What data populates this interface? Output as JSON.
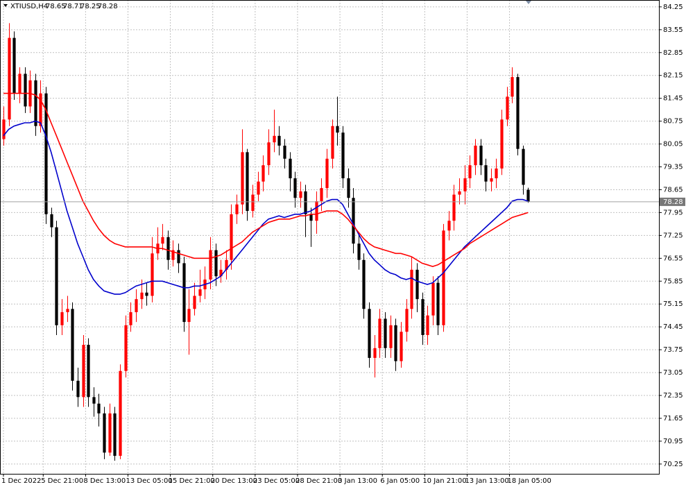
{
  "header": {
    "symbol": "XTIUSD,H4"
  },
  "chart_data": {
    "type": "candlestick",
    "up_color": "#ff0000",
    "down_color": "#000000",
    "grid": true,
    "xlim": [
      -0.65,
      123.7
    ],
    "ylim": [
      69.95,
      84.46
    ],
    "yticks": [
      84.25,
      83.55,
      82.85,
      82.15,
      81.45,
      80.75,
      80.05,
      79.35,
      78.65,
      77.95,
      77.25,
      76.55,
      75.85,
      75.15,
      74.45,
      73.75,
      73.05,
      72.35,
      71.65,
      70.95,
      70.25
    ],
    "xticks": [
      {
        "value": 0,
        "label": "1 Dec 2022"
      },
      {
        "value": 7.5,
        "label": "5 Dec 21:00"
      },
      {
        "value": 15.5,
        "label": "8 Dec 13:00"
      },
      {
        "value": 23.5,
        "label": "13 Dec 05:00"
      },
      {
        "value": 31.5,
        "label": "15 Dec 21:00"
      },
      {
        "value": 39.5,
        "label": "20 Dec 13:00"
      },
      {
        "value": 47.5,
        "label": "23 Dec 05:00"
      },
      {
        "value": 55.5,
        "label": "28 Dec 21:00"
      },
      {
        "value": 63.5,
        "label": "3 Jan 13:00"
      },
      {
        "value": 71.5,
        "label": "6 Jan 05:00"
      },
      {
        "value": 79.5,
        "label": "10 Jan 21:00"
      },
      {
        "value": 87.5,
        "label": "13 Jan 13:00"
      },
      {
        "value": 95.5,
        "label": "18 Jan 05:00"
      }
    ],
    "open": [
      80.2,
      80.8,
      83.3,
      81.6,
      82.2,
      81.2,
      82.0,
      80.6,
      81.6,
      77.9,
      77.5,
      74.5,
      74.9,
      75.0,
      72.8,
      72.3,
      73.9,
      72.3,
      72.1,
      71.8,
      70.6,
      71.8,
      70.5,
      73.1,
      74.5,
      74.9,
      75.3,
      75.5,
      75.4,
      76.7,
      77.0,
      77.2,
      76.5,
      76.8,
      76.4,
      74.6,
      75.0,
      75.4,
      75.6,
      75.9,
      76.8,
      76.0,
      76.2,
      76.5,
      77.9,
      78.2,
      79.8,
      78.0,
      78.5,
      78.9,
      79.4,
      80.1,
      80.3,
      80.0,
      79.6,
      79.0,
      78.4,
      78.6,
      77.9,
      77.7,
      78.3,
      78.7,
      79.6,
      80.6,
      80.4,
      79.0,
      78.4,
      77.0,
      76.5,
      75.0,
      73.5,
      73.8,
      74.7,
      73.8,
      74.5,
      73.4,
      74.3,
      75.0,
      76.2,
      75.3,
      74.2,
      74.8,
      75.8,
      74.5,
      77.4,
      77.7,
      78.5,
      78.6,
      79.0,
      79.4,
      80.0,
      79.4,
      78.9,
      79.0,
      79.3,
      80.8,
      81.5,
      82.1,
      79.9,
      78.65
    ],
    "high": [
      81.2,
      83.75,
      83.5,
      82.4,
      82.4,
      82.3,
      82.2,
      82.0,
      81.8,
      78.1,
      77.7,
      75.3,
      75.4,
      75.2,
      73.2,
      74.2,
      74.1,
      72.6,
      72.4,
      72.0,
      72.1,
      72.0,
      73.3,
      74.8,
      75.2,
      75.6,
      75.9,
      75.8,
      77.2,
      77.5,
      77.6,
      77.4,
      77.1,
      77.0,
      76.6,
      75.6,
      75.8,
      76.2,
      76.3,
      77.2,
      77.0,
      76.5,
      76.8,
      78.2,
      78.5,
      80.5,
      79.9,
      78.8,
      79.2,
      79.7,
      80.5,
      81.1,
      80.6,
      80.2,
      79.8,
      79.2,
      78.9,
      78.8,
      78.1,
      78.6,
      79.0,
      79.9,
      80.8,
      81.5,
      80.6,
      79.3,
      78.7,
      77.3,
      76.7,
      75.2,
      74.2,
      75.0,
      74.9,
      74.8,
      74.7,
      74.6,
      75.3,
      76.6,
      76.4,
      75.5,
      75.1,
      76.0,
      76.0,
      77.6,
      78.0,
      78.8,
      79.0,
      79.4,
      79.7,
      80.2,
      80.2,
      79.6,
      79.3,
      79.6,
      81.1,
      81.8,
      82.4,
      82.2,
      80.0,
      78.71
    ],
    "low": [
      80.0,
      80.6,
      81.4,
      81.3,
      81.0,
      81.0,
      80.3,
      80.4,
      77.6,
      77.2,
      74.2,
      74.2,
      74.6,
      72.5,
      72.0,
      72.0,
      72.0,
      71.7,
      71.4,
      70.4,
      70.5,
      70.35,
      70.4,
      72.9,
      74.3,
      74.6,
      75.0,
      75.1,
      75.2,
      76.5,
      76.8,
      76.2,
      76.3,
      76.1,
      74.3,
      73.6,
      74.8,
      75.2,
      75.3,
      75.6,
      75.7,
      75.8,
      75.9,
      76.2,
      77.6,
      77.9,
      77.7,
      77.8,
      78.3,
      78.6,
      79.1,
      79.8,
      79.7,
      79.3,
      78.6,
      78.1,
      78.1,
      77.2,
      76.9,
      77.3,
      78.0,
      78.4,
      79.3,
      80.0,
      78.7,
      78.1,
      76.7,
      76.2,
      74.7,
      73.2,
      72.9,
      73.5,
      73.5,
      73.5,
      73.1,
      73.2,
      74.0,
      74.7,
      74.9,
      73.9,
      73.9,
      74.5,
      74.2,
      74.3,
      77.1,
      77.4,
      78.2,
      78.2,
      78.7,
      79.1,
      79.1,
      78.6,
      78.6,
      78.7,
      79.1,
      80.6,
      81.3,
      79.7,
      78.5,
      78.25
    ],
    "close": [
      80.8,
      83.3,
      81.6,
      82.2,
      81.2,
      82.0,
      80.6,
      81.6,
      77.9,
      77.5,
      74.5,
      74.9,
      75.0,
      72.8,
      72.3,
      73.9,
      72.3,
      72.1,
      71.8,
      70.6,
      71.8,
      70.5,
      73.1,
      74.5,
      74.9,
      75.3,
      75.5,
      75.4,
      76.7,
      77.0,
      77.2,
      76.5,
      76.8,
      76.4,
      74.6,
      75.0,
      75.4,
      75.6,
      75.9,
      76.8,
      76.0,
      76.2,
      76.5,
      77.9,
      78.2,
      79.8,
      78.0,
      78.5,
      78.9,
      79.4,
      80.1,
      80.3,
      80.0,
      79.6,
      79.0,
      78.4,
      78.6,
      77.9,
      77.7,
      78.3,
      78.7,
      79.6,
      80.6,
      80.4,
      79.0,
      78.4,
      77.0,
      76.5,
      75.0,
      73.5,
      73.8,
      74.7,
      73.8,
      74.5,
      73.4,
      74.3,
      75.0,
      76.2,
      75.3,
      74.2,
      74.8,
      75.8,
      74.5,
      77.4,
      77.7,
      78.5,
      78.6,
      79.0,
      79.4,
      80.0,
      79.4,
      78.9,
      79.0,
      79.3,
      80.8,
      81.5,
      82.1,
      79.9,
      78.8,
      78.28
    ],
    "series": [
      {
        "color": "#0000cc",
        "values": [
          80.3,
          80.5,
          80.6,
          80.65,
          80.7,
          80.7,
          80.75,
          80.7,
          80.3,
          79.8,
          79.2,
          78.6,
          78.0,
          77.5,
          77.0,
          76.6,
          76.2,
          75.9,
          75.7,
          75.55,
          75.5,
          75.45,
          75.45,
          75.5,
          75.6,
          75.7,
          75.75,
          75.8,
          75.85,
          75.85,
          75.85,
          75.8,
          75.75,
          75.7,
          75.65,
          75.65,
          75.7,
          75.7,
          75.75,
          75.8,
          75.9,
          76.0,
          76.2,
          76.4,
          76.6,
          76.8,
          77.0,
          77.2,
          77.4,
          77.6,
          77.75,
          77.8,
          77.85,
          77.8,
          77.85,
          77.9,
          77.9,
          77.95,
          78.0,
          78.1,
          78.2,
          78.3,
          78.35,
          78.35,
          78.2,
          77.9,
          77.6,
          77.3,
          77.0,
          76.7,
          76.5,
          76.35,
          76.2,
          76.1,
          76.05,
          75.95,
          75.9,
          75.95,
          75.85,
          75.8,
          75.75,
          75.8,
          75.95,
          76.1,
          76.3,
          76.5,
          76.7,
          76.9,
          77.05,
          77.2,
          77.35,
          77.5,
          77.65,
          77.8,
          77.95,
          78.1,
          78.3,
          78.35,
          78.35,
          78.3
        ]
      },
      {
        "color": "#ff0000",
        "values": [
          81.6,
          81.6,
          81.6,
          81.6,
          81.6,
          81.6,
          81.55,
          81.4,
          81.1,
          80.7,
          80.3,
          79.9,
          79.5,
          79.1,
          78.7,
          78.3,
          78.0,
          77.7,
          77.45,
          77.25,
          77.1,
          77.0,
          76.95,
          76.9,
          76.9,
          76.9,
          76.9,
          76.9,
          76.9,
          76.85,
          76.85,
          76.8,
          76.75,
          76.7,
          76.65,
          76.6,
          76.55,
          76.55,
          76.55,
          76.55,
          76.6,
          76.65,
          76.75,
          76.85,
          76.95,
          77.05,
          77.2,
          77.35,
          77.45,
          77.55,
          77.65,
          77.7,
          77.75,
          77.75,
          77.75,
          77.8,
          77.85,
          77.85,
          77.9,
          77.9,
          77.95,
          78.0,
          78.0,
          78.0,
          77.9,
          77.75,
          77.55,
          77.35,
          77.15,
          77.0,
          76.9,
          76.85,
          76.8,
          76.75,
          76.7,
          76.7,
          76.65,
          76.6,
          76.5,
          76.4,
          76.35,
          76.3,
          76.35,
          76.45,
          76.55,
          76.65,
          76.75,
          76.85,
          77.0,
          77.1,
          77.2,
          77.3,
          77.4,
          77.5,
          77.6,
          77.7,
          77.8,
          77.85,
          77.9,
          77.95
        ]
      }
    ]
  }
}
